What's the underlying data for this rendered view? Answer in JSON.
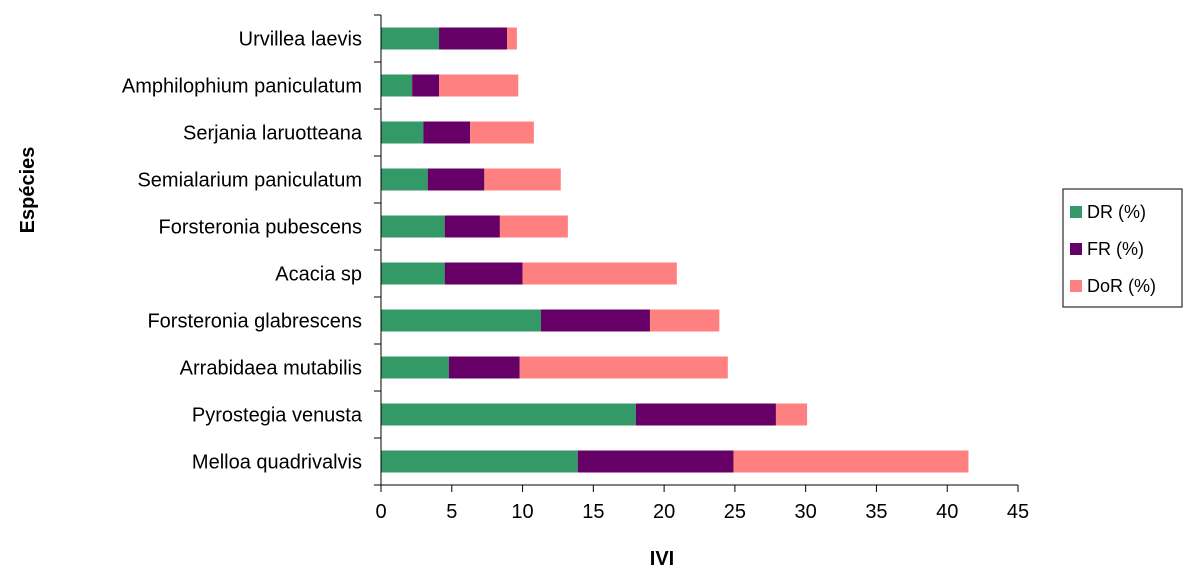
{
  "chart_data": {
    "type": "bar",
    "orientation": "horizontal",
    "stacked": true,
    "categories": [
      "Urvillea laevis",
      "Amphilophium paniculatum",
      "Serjania laruotteana",
      "Semialarium paniculatum",
      "Forsteronia pubescens",
      "Acacia sp",
      "Forsteronia glabrescens",
      "Arrabidaea mutabilis",
      "Pyrostegia venusta",
      "Melloa quadrivalvis"
    ],
    "series": [
      {
        "name": "DR (%)",
        "color": "#339966",
        "values": [
          4.1,
          2.2,
          3.0,
          3.3,
          4.5,
          4.5,
          11.3,
          4.8,
          18.0,
          13.9
        ]
      },
      {
        "name": "FR (%)",
        "color": "#660066",
        "values": [
          4.8,
          1.9,
          3.3,
          4.0,
          3.9,
          5.5,
          7.7,
          5.0,
          9.9,
          11.0
        ]
      },
      {
        "name": "DoR (%)",
        "color": "#FF8080",
        "values": [
          0.7,
          5.6,
          4.5,
          5.4,
          4.8,
          10.9,
          4.9,
          14.7,
          2.2,
          16.6
        ]
      }
    ],
    "xlabel": "IVI",
    "ylabel": "Espécies",
    "xlim": [
      0,
      45
    ],
    "xticks": [
      "0",
      "5",
      "10",
      "15",
      "20",
      "25",
      "30",
      "35",
      "40",
      "45"
    ],
    "grid": false,
    "legend_position": "right"
  }
}
